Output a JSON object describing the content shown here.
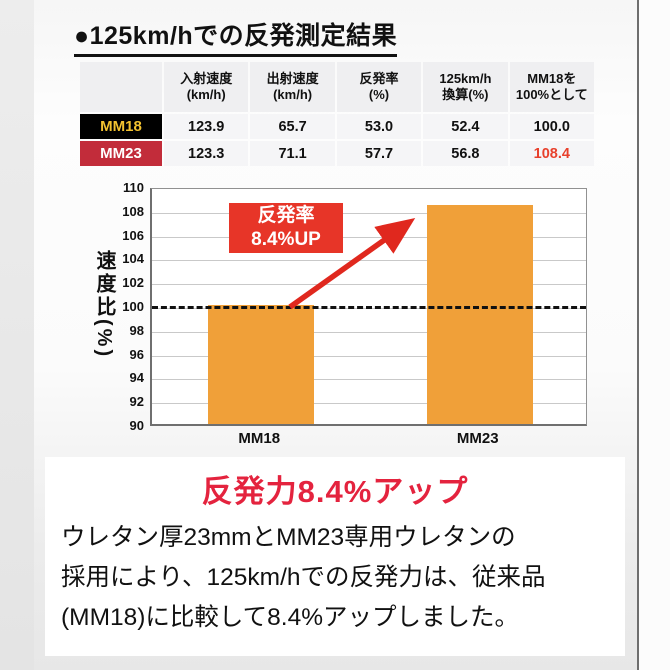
{
  "page": {
    "title": "●125km/hでの反発測定結果"
  },
  "table": {
    "headers": [
      {
        "line1": "入射速度",
        "line2": "(km/h)"
      },
      {
        "line1": "出射速度",
        "line2": "(km/h)"
      },
      {
        "line1": "反発率",
        "line2": "(%)"
      },
      {
        "line1": "125km/h",
        "line2": "換算(%)"
      },
      {
        "line1": "MM18を",
        "line2": "100%として"
      }
    ],
    "rows": [
      {
        "label": "MM18",
        "values": [
          "123.9",
          "65.7",
          "53.0",
          "52.4",
          "100.0"
        ],
        "label_bg": "#000000",
        "label_color": "#F2C230"
      },
      {
        "label": "MM23",
        "values": [
          "123.3",
          "71.1",
          "57.7",
          "56.8",
          "108.4"
        ],
        "label_bg": "#C22C3A",
        "label_color": "#FFFFFF",
        "last_value_color": "#E8402C"
      }
    ]
  },
  "chart_data": {
    "type": "bar",
    "categories": [
      "MM18",
      "MM23"
    ],
    "values": [
      100,
      108.4
    ],
    "title": "",
    "xlabel": "",
    "ylabel": "速度比(%)",
    "ylim": [
      90,
      110
    ],
    "ytick_step": 2,
    "grid": true,
    "baseline": 100,
    "baseline_style": "dashed-black",
    "bar_color": "#F0A039",
    "annotation": {
      "line1": "反発率",
      "line2": "8.4%UP",
      "bg": "#E73528",
      "arrow_color": "#E0281E"
    }
  },
  "footer": {
    "heading": "反発力8.4%アップ",
    "heading_color": "#E4233E",
    "body_lines": [
      "ウレタン厚23mmとMM23専用ウレタンの",
      "採用により、125km/hでの反発力は、従来品",
      "(MM18)に比較して8.4%アップしました。"
    ]
  }
}
